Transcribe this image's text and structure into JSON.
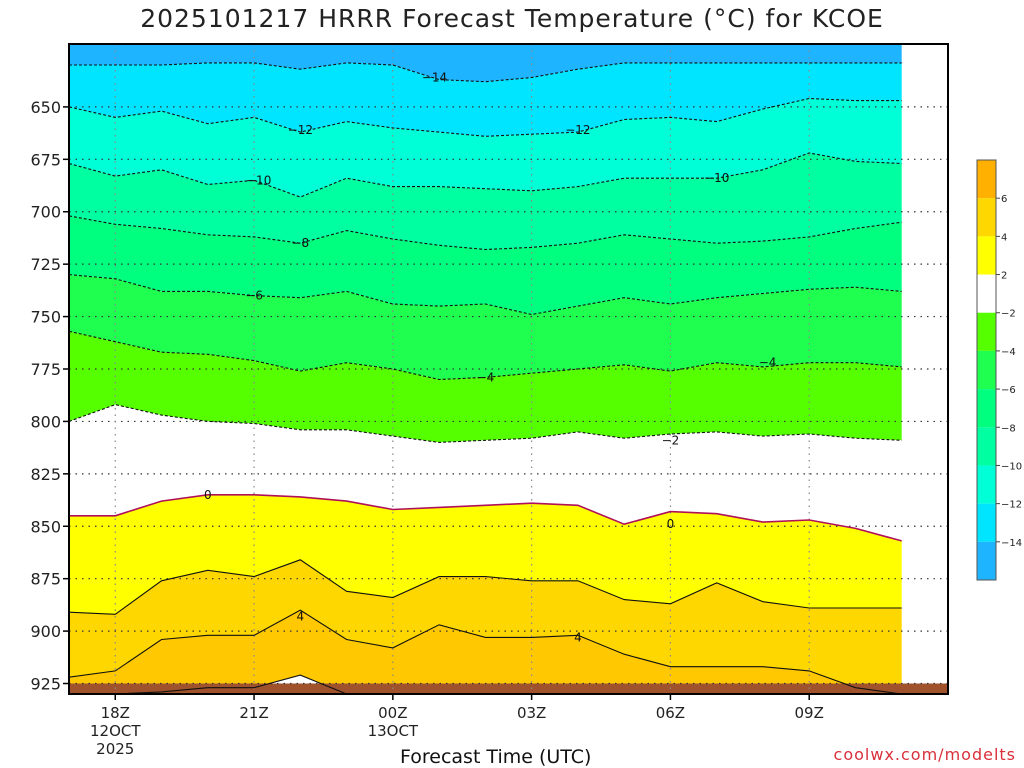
{
  "chart_data": {
    "type": "contour",
    "title": "2025101217 HRRR Forecast Temperature (°C) for KCOE",
    "xlabel": "Forecast Time (UTC)",
    "ylabel": "",
    "credit": "coolwx.com/modelts",
    "y_ticks": [
      650,
      675,
      700,
      725,
      750,
      775,
      800,
      825,
      850,
      875,
      900,
      925
    ],
    "ylim": [
      620,
      930
    ],
    "y_inverted": true,
    "x_ticks": [
      {
        "hour": 18,
        "label": "18Z",
        "sub": [
          "12OCT",
          "2025"
        ]
      },
      {
        "hour": 21,
        "label": "21Z",
        "sub": []
      },
      {
        "hour": 24,
        "label": "00Z",
        "sub": [
          "13OCT"
        ]
      },
      {
        "hour": 27,
        "label": "03Z",
        "sub": []
      },
      {
        "hour": 30,
        "label": "06Z",
        "sub": []
      },
      {
        "hour": 33,
        "label": "09Z",
        "sub": []
      }
    ],
    "xlim": [
      17,
      36
    ],
    "grid": true,
    "colorbar_labels": [
      6,
      4,
      2,
      -2,
      -4,
      -6,
      -8,
      -10,
      -12,
      -14
    ],
    "fill_colors": {
      "ground": "#a0522d",
      "t4_6": "#ffc800",
      "t2_4": "#ffd700",
      "t0_2": "#ffff00",
      "tm2_2": "#ffffff",
      "tm4_m2": "#55ff00",
      "tm6_m4": "#1eff50",
      "tm8_m6": "#00ff7f",
      "tm10_m8": "#00ffa0",
      "tm12_m10": "#00ffd7",
      "tm14_m12": "#00e5ff",
      "tm16_m14": "#1eb4ff"
    },
    "colorbar_colors": [
      "#ffb000",
      "#ffd700",
      "#ffff00",
      "#ffffff",
      "#55ff00",
      "#1eff50",
      "#00ff7f",
      "#00ffa0",
      "#00ffd7",
      "#00e5ff",
      "#1eb4ff"
    ],
    "x_hours": [
      17,
      18,
      19,
      20,
      21,
      22,
      23,
      24,
      25,
      26,
      27,
      28,
      29,
      30,
      31,
      32,
      33,
      34,
      35
    ],
    "isotherms": [
      {
        "temp": -14,
        "style": "dashed",
        "values": [
          630,
          630,
          630,
          629,
          629,
          632,
          629,
          630,
          637,
          638,
          636,
          632,
          629,
          629,
          629,
          629,
          629,
          629,
          629
        ]
      },
      {
        "temp": -12,
        "style": "dashed",
        "values": [
          650,
          655,
          652,
          658,
          655,
          662,
          657,
          660,
          662,
          664,
          663,
          662,
          656,
          655,
          657,
          651,
          646,
          647,
          647
        ]
      },
      {
        "temp": -10,
        "style": "dashed",
        "values": [
          677,
          683,
          680,
          687,
          685,
          693,
          684,
          688,
          688,
          689,
          690,
          688,
          684,
          684,
          684,
          680,
          672,
          676,
          677
        ]
      },
      {
        "temp": -8,
        "style": "dashed",
        "values": [
          702,
          706,
          708,
          711,
          712,
          715,
          709,
          713,
          716,
          718,
          717,
          715,
          711,
          713,
          715,
          714,
          712,
          708,
          705
        ]
      },
      {
        "temp": -6,
        "style": "dashed",
        "values": [
          730,
          732,
          738,
          738,
          740,
          741,
          738,
          744,
          745,
          744,
          749,
          745,
          741,
          744,
          741,
          739,
          737,
          736,
          738
        ]
      },
      {
        "temp": -4,
        "style": "dashed",
        "values": [
          757,
          762,
          767,
          768,
          771,
          776,
          772,
          775,
          780,
          779,
          777,
          775,
          773,
          776,
          772,
          774,
          772,
          772,
          774
        ]
      },
      {
        "temp": -2,
        "style": "dashed",
        "values": [
          800,
          792,
          797,
          800,
          801,
          804,
          804,
          807,
          810,
          809,
          808,
          805,
          808,
          806,
          805,
          807,
          806,
          808,
          809
        ]
      },
      {
        "temp": 0,
        "style": "solid",
        "values": [
          845,
          845,
          838,
          835,
          835,
          836,
          838,
          842,
          841,
          840,
          839,
          840,
          849,
          843,
          844,
          848,
          847,
          851,
          857
        ]
      },
      {
        "temp": 2,
        "style": "solid",
        "values": [
          891,
          892,
          876,
          871,
          874,
          866,
          881,
          884,
          874,
          874,
          876,
          876,
          885,
          887,
          877,
          886,
          889,
          889,
          889
        ]
      },
      {
        "temp": 4,
        "style": "solid",
        "values": [
          922,
          919,
          904,
          902,
          902,
          890,
          904,
          908,
          897,
          903,
          903,
          902,
          911,
          917,
          917,
          917,
          919,
          927,
          930
        ]
      },
      {
        "temp": 6,
        "style": "solid",
        "values": [
          930,
          930,
          929,
          927,
          927,
          921,
          930,
          930,
          930,
          930,
          930,
          930,
          930,
          930,
          930,
          930,
          930,
          930,
          930
        ]
      }
    ],
    "contour_labels": [
      {
        "text": "−14",
        "hour": 24.9,
        "p": 636
      },
      {
        "text": "−12",
        "hour": 22.0,
        "p": 661
      },
      {
        "text": "−12",
        "hour": 28.0,
        "p": 661
      },
      {
        "text": "−10",
        "hour": 21.1,
        "p": 685
      },
      {
        "text": "−10",
        "hour": 31.0,
        "p": 684
      },
      {
        "text": "−8",
        "hour": 22.0,
        "p": 715
      },
      {
        "text": "−6",
        "hour": 21.0,
        "p": 740
      },
      {
        "text": "−4",
        "hour": 26.0,
        "p": 779
      },
      {
        "text": "−4",
        "hour": 32.1,
        "p": 772
      },
      {
        "text": "−2",
        "hour": 30.0,
        "p": 809
      },
      {
        "text": "0",
        "hour": 20.0,
        "p": 835
      },
      {
        "text": "0",
        "hour": 30.0,
        "p": 849
      },
      {
        "text": "4",
        "hour": 22.0,
        "p": 893
      },
      {
        "text": "4",
        "hour": 28.0,
        "p": 903
      }
    ],
    "ground_top": 925
  }
}
